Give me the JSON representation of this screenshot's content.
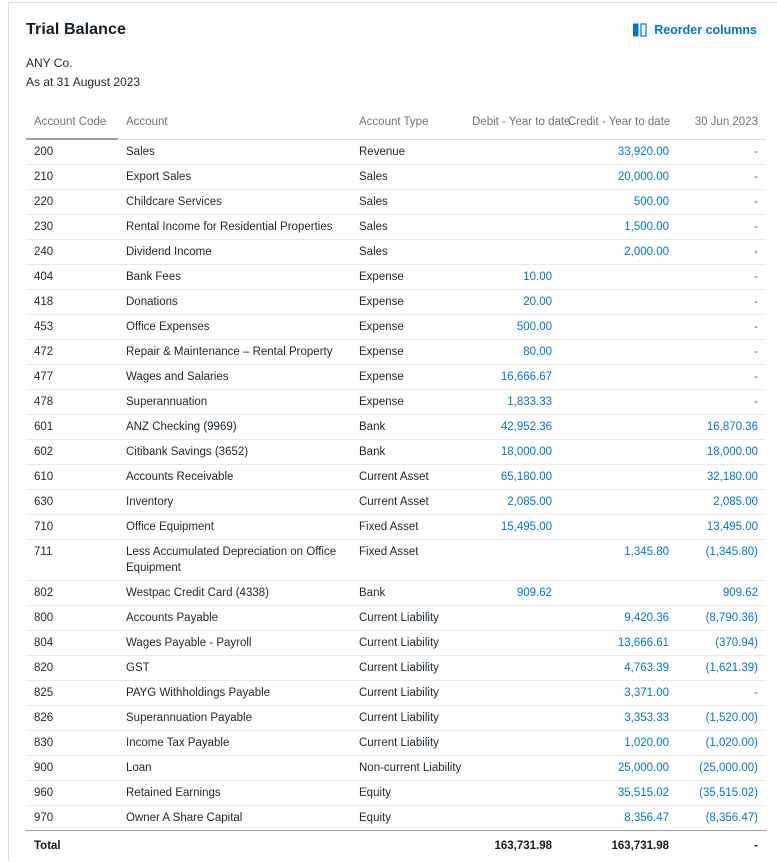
{
  "page": {
    "title": "Trial Balance",
    "company": "ANY Co.",
    "date_line": "As at 31 August 2023",
    "reorder_label": "Reorder columns"
  },
  "colors": {
    "link_blue": "#0077c8",
    "text_dark": "#1b2730",
    "header_gray": "#6c7378",
    "row_divider": "#e8e9ea",
    "total_divider": "#9aa0a5",
    "card_border": "#d8dcdf"
  },
  "table": {
    "columns": [
      {
        "key": "code",
        "label": "Account Code",
        "align": "left"
      },
      {
        "key": "account",
        "label": "Account",
        "align": "left"
      },
      {
        "key": "type",
        "label": "Account Type",
        "align": "left"
      },
      {
        "key": "debit",
        "label": "Debit - Year to date",
        "align": "right"
      },
      {
        "key": "credit",
        "label": "Credit - Year to date",
        "align": "right"
      },
      {
        "key": "jun",
        "label": "30 Jun 2023",
        "align": "right"
      }
    ],
    "rows": [
      {
        "code": "200",
        "account": "Sales",
        "type": "Revenue",
        "debit": "",
        "credit": "33,920.00",
        "jun": "-"
      },
      {
        "code": "210",
        "account": "Export Sales",
        "type": "Sales",
        "debit": "",
        "credit": "20,000.00",
        "jun": "-"
      },
      {
        "code": "220",
        "account": "Childcare Services",
        "type": "Sales",
        "debit": "",
        "credit": "500.00",
        "jun": "-"
      },
      {
        "code": "230",
        "account": "Rental Income for Residential Properties",
        "type": "Sales",
        "debit": "",
        "credit": "1,500.00",
        "jun": "-"
      },
      {
        "code": "240",
        "account": "Dividend Income",
        "type": "Sales",
        "debit": "",
        "credit": "2,000.00",
        "jun": "-"
      },
      {
        "code": "404",
        "account": "Bank Fees",
        "type": "Expense",
        "debit": "10.00",
        "credit": "",
        "jun": "-"
      },
      {
        "code": "418",
        "account": "Donations",
        "type": "Expense",
        "debit": "20.00",
        "credit": "",
        "jun": "-"
      },
      {
        "code": "453",
        "account": "Office Expenses",
        "type": "Expense",
        "debit": "500.00",
        "credit": "",
        "jun": "-"
      },
      {
        "code": "472",
        "account": "Repair & Maintenance – Rental Property",
        "type": "Expense",
        "debit": "80.00",
        "credit": "",
        "jun": "-"
      },
      {
        "code": "477",
        "account": "Wages and Salaries",
        "type": "Expense",
        "debit": "16,666.67",
        "credit": "",
        "jun": "-"
      },
      {
        "code": "478",
        "account": "Superannuation",
        "type": "Expense",
        "debit": "1,833.33",
        "credit": "",
        "jun": "-"
      },
      {
        "code": "601",
        "account": "ANZ Checking (9969)",
        "type": "Bank",
        "debit": "42,952.36",
        "credit": "",
        "jun": "16,870.36"
      },
      {
        "code": "602",
        "account": "Citibank Savings (3652)",
        "type": "Bank",
        "debit": "18,000.00",
        "credit": "",
        "jun": "18,000.00"
      },
      {
        "code": "610",
        "account": "Accounts Receivable",
        "type": "Current Asset",
        "debit": "65,180.00",
        "credit": "",
        "jun": "32,180.00"
      },
      {
        "code": "630",
        "account": "Inventory",
        "type": "Current Asset",
        "debit": "2,085.00",
        "credit": "",
        "jun": "2,085.00"
      },
      {
        "code": "710",
        "account": "Office Equipment",
        "type": "Fixed Asset",
        "debit": "15,495.00",
        "credit": "",
        "jun": "13,495.00"
      },
      {
        "code": "711",
        "account": "Less Accumulated Depreciation on Office Equipment",
        "type": "Fixed Asset",
        "debit": "",
        "credit": "1,345.80",
        "jun": "(1,345.80)"
      },
      {
        "code": "802",
        "account": "Westpac Credit Card (4338)",
        "type": "Bank",
        "debit": "909.62",
        "credit": "",
        "jun": "909.62"
      },
      {
        "code": "800",
        "account": "Accounts Payable",
        "type": "Current Liability",
        "debit": "",
        "credit": "9,420.36",
        "jun": "(8,790.36)"
      },
      {
        "code": "804",
        "account": "Wages Payable - Payroll",
        "type": "Current Liability",
        "debit": "",
        "credit": "13,666.61",
        "jun": "(370.94)"
      },
      {
        "code": "820",
        "account": "GST",
        "type": "Current Liability",
        "debit": "",
        "credit": "4,763.39",
        "jun": "(1,621.39)"
      },
      {
        "code": "825",
        "account": "PAYG Withholdings Payable",
        "type": "Current Liability",
        "debit": "",
        "credit": "3,371.00",
        "jun": "-"
      },
      {
        "code": "826",
        "account": "Superannuation Payable",
        "type": "Current Liability",
        "debit": "",
        "credit": "3,353.33",
        "jun": "(1,520.00)"
      },
      {
        "code": "830",
        "account": "Income Tax Payable",
        "type": "Current Liability",
        "debit": "",
        "credit": "1,020.00",
        "jun": "(1,020.00)"
      },
      {
        "code": "900",
        "account": "Loan",
        "type": "Non-current Liability",
        "debit": "",
        "credit": "25,000.00",
        "jun": "(25,000.00)"
      },
      {
        "code": "960",
        "account": "Retained Earnings",
        "type": "Equity",
        "debit": "",
        "credit": "35,515.02",
        "jun": "(35,515.02)"
      },
      {
        "code": "970",
        "account": "Owner A Share Capital",
        "type": "Equity",
        "debit": "",
        "credit": "8,356.47",
        "jun": "(8,356.47)"
      }
    ],
    "total": {
      "label": "Total",
      "debit": "163,731.98",
      "credit": "163,731.98",
      "jun": "-"
    }
  }
}
